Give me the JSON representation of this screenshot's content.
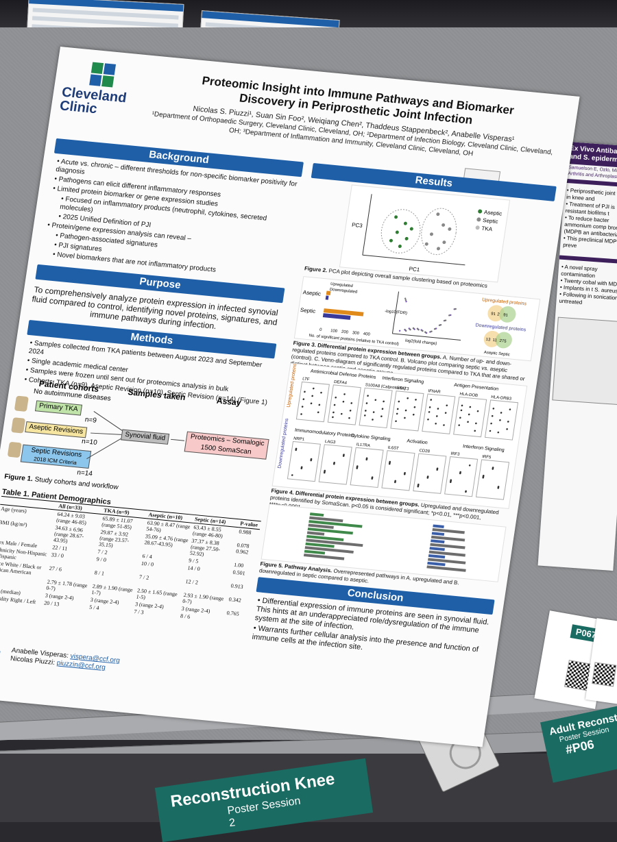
{
  "scene": {
    "floor_banner": "Reconstruction Knee",
    "floor_banner_sub": "Poster Session 2",
    "right_banner_title": "Adult Reconst",
    "right_banner_sub": "Poster Session",
    "right_banner_code": "#P06",
    "poster_tag": "P067"
  },
  "neighbor_poster": {
    "title": "Ex Vivo Antibacteria and S. epidermidis i",
    "authors": "Samuelson E, Ozlo, Michael F",
    "affiliation": "Arthritis and Arthroplasty Desig",
    "bullets": [
      "Periprosthetic joint failure in knee and",
      "Treatment of PJI is resistant biofilms t",
      "To reduce bacter ammonium comp bromide (MDPB an antibacterial",
      "This preclinical MDPB to preve"
    ],
    "more_bullets": [
      "A novel spray contamination",
      "Twenty cobal with MDPB c",
      "Implants in t S. aureus o",
      "Following in sonication, untreated"
    ]
  },
  "poster": {
    "logo": "Cleveland Clinic",
    "title_line1": "Proteomic Insight into Immune Pathways and Biomarker",
    "title_line2": "Discovery in Periprosthetic Joint Infection",
    "authors": "Nicolas S. Piuzzi¹, Suan Sin Foo², Weiqiang Chen², Thaddeus Stappenbeck², Anabelle Visperas¹",
    "affiliations": "¹Department of Orthopaedic Surgery, Cleveland Clinic, Cleveland, OH; ²Department of Infection Biology, Cleveland Clinic, Cleveland, OH; ³Department of Inflammation and Immunity, Cleveland Clinic, Cleveland, OH",
    "background_header": "Background",
    "background": [
      {
        "text": "Acute vs. chronic – different thresholds for non-specific biomarker positivity for diagnosis",
        "sub": []
      },
      {
        "text": "Pathogens can elicit different inflammatory responses",
        "sub": []
      },
      {
        "text": "Limited protein biomarker or gene expression studies",
        "sub": [
          "Focused on inflammatory products (neutrophil, cytokines, secreted molecules)",
          "2025 Unified Definition of PJI"
        ]
      },
      {
        "text": "Protein/gene expression analysis can reveal –",
        "sub": [
          "Pathogen-associated signatures",
          "PJI signatures",
          "Novel biomarkers that are not inflammatory products"
        ]
      }
    ],
    "purpose_header": "Purpose",
    "purpose": "To comprehensively analyze protein expression in infected synovial fluid compared to control, identifying novel proteins, signatures, and immune pathways during infection.",
    "methods_header": "Methods",
    "methods": [
      "Samples collected from TKA patients between August 2023 and September 2024",
      "Single academic medical center",
      "Samples were frozen until sent out for proteomics analysis in bulk",
      "Cohorts: TKA (n=9), Aseptic Revision (n=10), Septic Revision (n=14) (Figure 1)"
    ],
    "flow": {
      "col1": "Patient cohorts",
      "col2": "Samples taken",
      "col3": "Assay",
      "note": "No autoimmune diseases",
      "primary": "Primary TKA",
      "primary_n": "n=9",
      "aseptic": "Aseptic Revisions",
      "aseptic_n": "n=10",
      "septic": "Septic Revisions",
      "septic_sub": "2018 ICM Criteria",
      "septic_n": "n=14",
      "sample": "Synovial fluid",
      "assay": "Proteomics – Somalogic 1500 SomaScan",
      "caption_label": "Figure 1.",
      "caption": "Study cohorts and workflow"
    },
    "table": {
      "title": "Table 1. Patient Demographics",
      "head": [
        "",
        "All (n=33)",
        "TKA (n=9)",
        "Aseptic (n=10)",
        "Septic (n=14)",
        "P-value"
      ],
      "rows": [
        [
          "Age (years)",
          "64.24 ± 9.03 (range 46-85)",
          "65.89 ± 11.07 (range 51-85)",
          "63.90 ± 8.47 (range 54-76)",
          "63.43 ± 8.55 (range 46-80)",
          "0.988"
        ],
        [
          "BMI (kg/m²)",
          "34.63 ± 6.96 (range 28.67-43.95)",
          "29.87 ± 3.92 (range 23.57-35.15)",
          "35.09 ± 4.76 (range 28.67-43.95)",
          "37.37 ± 8.38 (range 27.50-52.92)",
          "0.078 0.962"
        ],
        [
          "Sex  Male / Female",
          "22 / 11",
          "7 / 2",
          "6 / 4",
          "9 / 5",
          "1.00"
        ],
        [
          "Ethnicity  Non-Hispanic / Hispanic",
          "33 / 0",
          "9 / 0",
          "10 / 0",
          "14 / 0",
          "0.501"
        ],
        [
          "Race  White / Black or African American",
          "27 / 6",
          "8 / 1",
          "7 / 2",
          "12 / 2",
          "0.913"
        ],
        [
          "CCI",
          "2.79 ± 1.78 (range 0-7)",
          "2.89 ± 1.90 (range 1-7)",
          "2.50 ± 1.65 (range 1-5)",
          "2.93 ± 1.90 (range 0-7)",
          "0.342"
        ],
        [
          "ASA (median)",
          "3 (range 2-4)",
          "3 (range 2-4)",
          "3 (range 2-4)",
          "3 (range 2-4)",
          "0.765"
        ],
        [
          "Laterality  Right / Left",
          "20 / 13",
          "5 / 4",
          "7 / 3",
          "8 / 6",
          ""
        ]
      ]
    },
    "results_header": "Results",
    "fig2_caption_label": "Figure 2.",
    "fig2_caption": "PCA plot depicting overall sample clustering based on proteomics",
    "fig2_legend": [
      "Aseptic",
      "Septic",
      "TKA"
    ],
    "fig2_xlabel": "PC1",
    "fig2_ylabel": "PC3",
    "fig3": {
      "bar_cats": [
        "Aseptic",
        "Septic"
      ],
      "bar_legend": [
        "Upregulated",
        "Downregulated"
      ],
      "bar_xlabel": "No. of significant proteins (relative to TKA control)",
      "bar_ticks": [
        "0",
        "100",
        "200",
        "300",
        "400"
      ],
      "volcano_x": "log2(fold change)",
      "volcano_y": "-log10(FDR)",
      "venn_up": "Upregulated proteins",
      "venn_up_vals": [
        "91",
        "2",
        "91"
      ],
      "venn_down": "Downregulated proteins",
      "venn_down_vals": [
        "13",
        "11",
        "275"
      ],
      "venn_labels": "Aseptic  Septic",
      "caption_label": "Figure 3. Differential protein expression between groups.",
      "caption": "A. Number of up- and down-regulated proteins compared to TKA control. B. Volcano plot comparing septic vs. aseptic (control). C. Venn-diagram of significantly regulated proteins compared to TKA that are shared or distinct between septic and aseptic groups"
    },
    "fig4": {
      "up_groups": [
        "Antimicrobial Defense Proteins",
        "Interferon Signaling",
        "Antigen Presentation"
      ],
      "up_genes": [
        "LTF",
        "DEFA4",
        "S100A8 (Calprotectin)",
        "STAT3",
        "IFNAR",
        "HLA-DOB",
        "HLA-DRB3"
      ],
      "down_groups": [
        "Immunomodulatory Proteins",
        "Cytokine Signaling",
        "Activation",
        "Interferon Signaling"
      ],
      "down_genes": [
        "NRP1",
        "LAG3",
        "IL17RA",
        "IL6ST",
        "CD28",
        "IRF3",
        "IRF5"
      ],
      "up_label": "Upregulated proteins",
      "down_label": "Downregulated proteins",
      "caption_label": "Figure 4. Differential protein expression between groups.",
      "caption": "Upregulated and downregulated proteins identified by SomaScan. p<0.05 is considered significant; *p<0.01, ***p<0.001, ****p<0.0001"
    },
    "fig5": {
      "caption_label": "Figure 5. Pathway Analysis.",
      "caption": "Overrepresented pathways in A. upregulated and B. downregulated in septic compared to aseptic."
    },
    "conclusion_header": "Conclusion",
    "conclusion": [
      "Differential expression of immune proteins are seen in synovial fluid. This hints at an underappreciated role/dysregulation of the immune system at the site of infection.",
      "Warrants further cellular analysis into the presence and function of immune cells at the infection site."
    ],
    "contact": [
      {
        "name": "Anabelle Visperas:",
        "email": "vispera@ccf.org"
      },
      {
        "name": "Nicolas Piuzzi:",
        "email": "piuzzin@ccf.org"
      }
    ]
  },
  "colors": {
    "accent": "#1e5fa8",
    "green": "#1f8a4c",
    "banner": "#1a6b62"
  }
}
